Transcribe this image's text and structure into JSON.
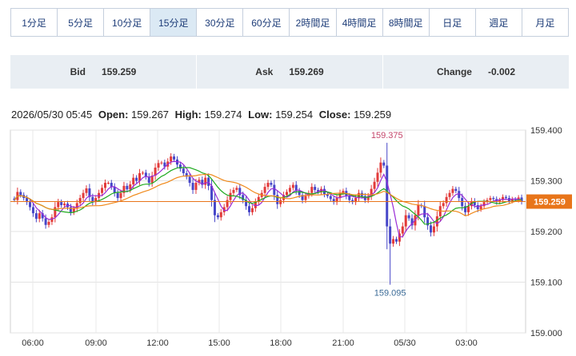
{
  "timeframes": [
    "1分足",
    "5分足",
    "10分足",
    "15分足",
    "30分足",
    "60分足",
    "2時間足",
    "4時間足",
    "8時間足",
    "日足",
    "週足",
    "月足"
  ],
  "active_timeframe": "15分足",
  "quotes": {
    "bid_label": "Bid",
    "bid_value": "159.259",
    "ask_label": "Ask",
    "ask_value": "159.269",
    "change_label": "Change",
    "change_value": "-0.002"
  },
  "ohlc": {
    "datetime": "2026/05/30 05:45",
    "open_label": "Open:",
    "open": "159.267",
    "high_label": "High:",
    "high": "159.274",
    "low_label": "Low:",
    "low": "159.254",
    "close_label": "Close:",
    "close": "159.259"
  },
  "colors": {
    "up": "#e23a3a",
    "down": "#4646c8",
    "ma_fast": "#9a2bd6",
    "ma_mid": "#1faa1f",
    "ma_slow": "#f08a1c",
    "price_line": "#e8751a"
  },
  "chart_data": {
    "type": "candlestick",
    "ylim": [
      159.0,
      159.4
    ],
    "y_ticks": [
      "159.400",
      "159.300",
      "159.200",
      "159.100",
      "159.000"
    ],
    "x_ticks": [
      "06:00",
      "09:00",
      "12:00",
      "15:00",
      "18:00",
      "21:00",
      "05/30",
      "03:00"
    ],
    "current_price": "159.259",
    "annotations": {
      "high": "159.375",
      "low": "159.095"
    },
    "open_first": 159.265,
    "closes": [
      159.262,
      159.278,
      159.272,
      159.266,
      159.258,
      159.248,
      159.236,
      159.225,
      159.236,
      159.226,
      159.213,
      159.219,
      159.228,
      159.248,
      159.258,
      159.252,
      159.255,
      159.248,
      159.238,
      159.245,
      159.256,
      159.266,
      159.276,
      159.285,
      159.268,
      159.258,
      159.266,
      159.276,
      159.286,
      159.296,
      159.296,
      159.288,
      159.276,
      159.266,
      159.276,
      159.29,
      159.283,
      159.293,
      159.306,
      159.3,
      159.315,
      159.316,
      159.308,
      159.296,
      159.31,
      159.326,
      159.335,
      159.336,
      159.328,
      159.338,
      159.348,
      159.342,
      159.332,
      159.324,
      159.315,
      159.308,
      159.296,
      159.282,
      159.296,
      159.302,
      159.292,
      159.306,
      159.29,
      159.262,
      159.232,
      159.228,
      159.238,
      159.248,
      159.262,
      159.276,
      159.282,
      159.286,
      159.272,
      159.262,
      159.25,
      159.238,
      159.246,
      159.258,
      159.268,
      159.276,
      159.288,
      159.296,
      159.292,
      159.272,
      159.254,
      159.262,
      159.272,
      159.278,
      159.286,
      159.292,
      159.28,
      159.272,
      159.262,
      159.27,
      159.276,
      159.288,
      159.282,
      159.278,
      159.284,
      159.274,
      159.27,
      159.264,
      159.258,
      159.266,
      159.276,
      159.28,
      159.27,
      159.262,
      159.258,
      159.266,
      159.276,
      159.27,
      159.262,
      159.27,
      159.284,
      159.298,
      159.316,
      159.336,
      159.33,
      159.21,
      159.176,
      159.185,
      159.18,
      159.196,
      159.21,
      159.232,
      159.226,
      159.212,
      159.232,
      159.252,
      159.25,
      159.228,
      159.212,
      159.198,
      159.21,
      159.23,
      159.25,
      159.256,
      159.268,
      159.276,
      159.284,
      159.28,
      159.266,
      159.25,
      159.238,
      159.25,
      159.26,
      159.252,
      159.244,
      159.25,
      159.258,
      159.262,
      159.266,
      159.264,
      159.258,
      159.262,
      159.268,
      159.266,
      159.26,
      159.264,
      159.262,
      159.267,
      159.259
    ]
  }
}
